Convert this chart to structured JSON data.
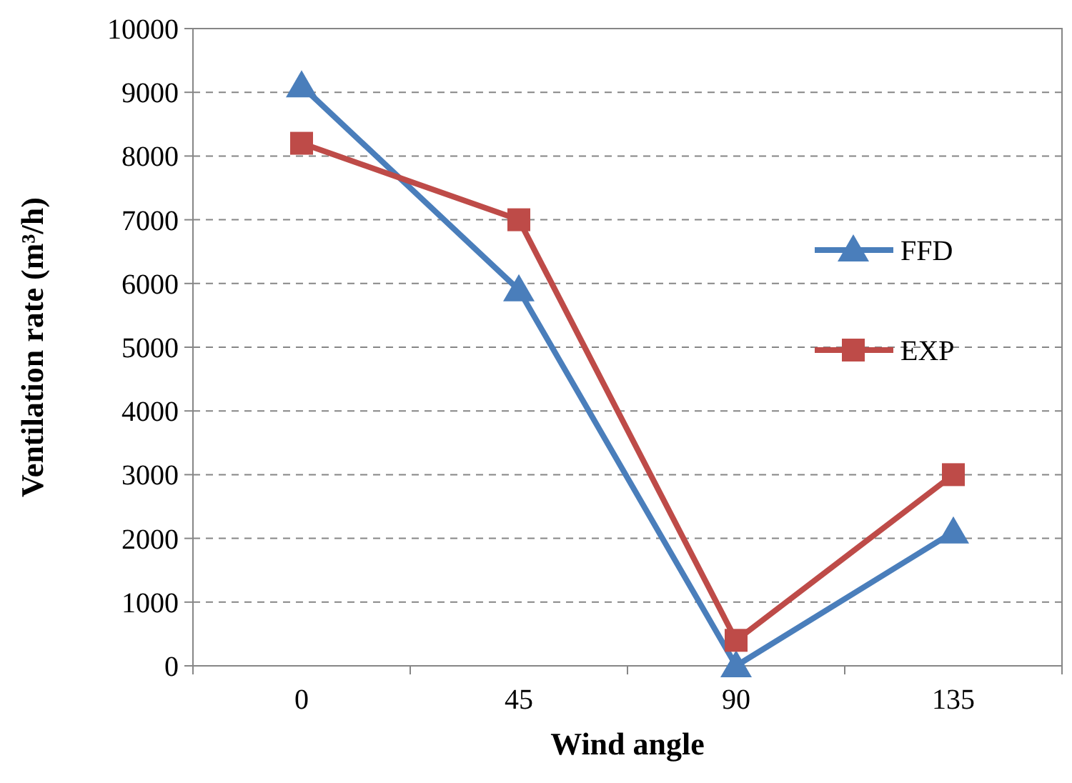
{
  "chart_data": {
    "type": "line",
    "xlabel": "Wind angle",
    "ylabel": "Ventilation rate (m³/h)",
    "categories": [
      "0",
      "45",
      "90",
      "135"
    ],
    "ylim": [
      0,
      10000
    ],
    "yticks": [
      0,
      1000,
      2000,
      3000,
      4000,
      5000,
      6000,
      7000,
      8000,
      9000,
      10000
    ],
    "grid": "y",
    "legend": "right",
    "series": [
      {
        "name": "FFD",
        "color": "#4a7ebb",
        "marker": "triangle",
        "values": [
          9100,
          5900,
          0,
          2100
        ]
      },
      {
        "name": "EXP",
        "color": "#be4b48",
        "marker": "square",
        "values": [
          8200,
          7000,
          400,
          3000
        ]
      }
    ]
  }
}
